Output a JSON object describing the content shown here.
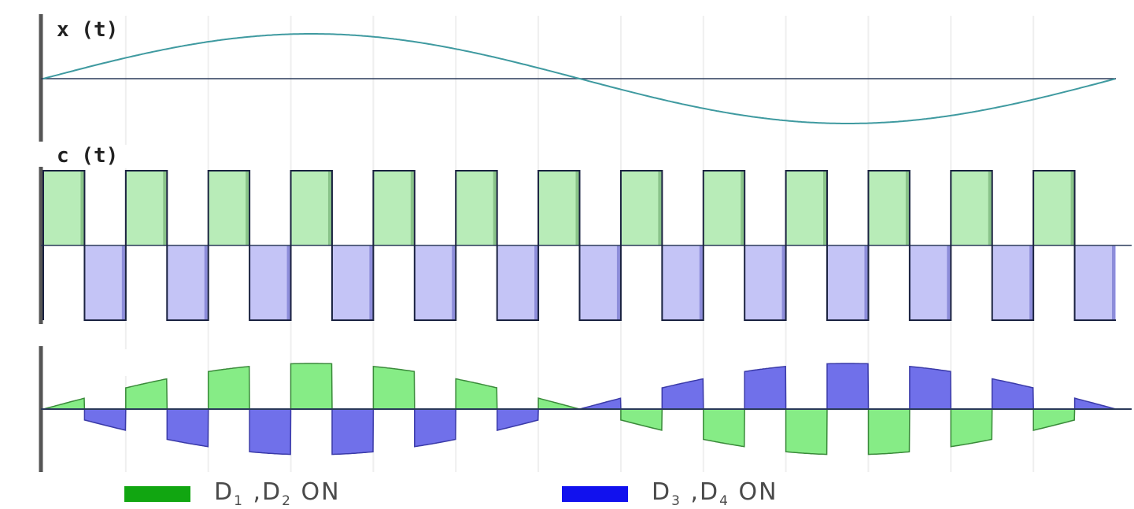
{
  "panels": {
    "x": {
      "label": "x (t)",
      "colors": {
        "curve": "#3f9aa0"
      }
    },
    "c": {
      "label": "c (t)",
      "colors": {
        "pos": "#b8ecb8",
        "neg": "#c4c4f6",
        "edge_pos": "#6aa86a",
        "edge_neg": "#6a6ac8"
      }
    },
    "out": {
      "label": ""
    }
  },
  "chart_data": {
    "type": "line",
    "title": "",
    "description_free": true,
    "modulating_signal": {
      "function": "sin",
      "cycles": 1
    },
    "carrier_signal": {
      "type": "square",
      "periods": 13,
      "levels": [
        1,
        -1
      ]
    },
    "output_signal": {
      "type": "product",
      "of": [
        "x(t)",
        "c(t)"
      ]
    }
  },
  "legend": {
    "items": [
      {
        "main": "D",
        "sub1": "1",
        "sep": " ,D",
        "sub2": "2",
        "tail": " ON",
        "color": "#11a611"
      },
      {
        "main": "D",
        "sub1": "3",
        "sep": " ,D",
        "sub2": "4",
        "tail": " ON",
        "color": "#1111ee"
      }
    ]
  },
  "colors": {
    "axis": "#555555",
    "zero_line": "#2a3a5a",
    "green_fill": "#86ec86",
    "blue_fill": "#7070ea",
    "green_edge": "#3a8a3a",
    "blue_edge": "#3a3aa8"
  }
}
